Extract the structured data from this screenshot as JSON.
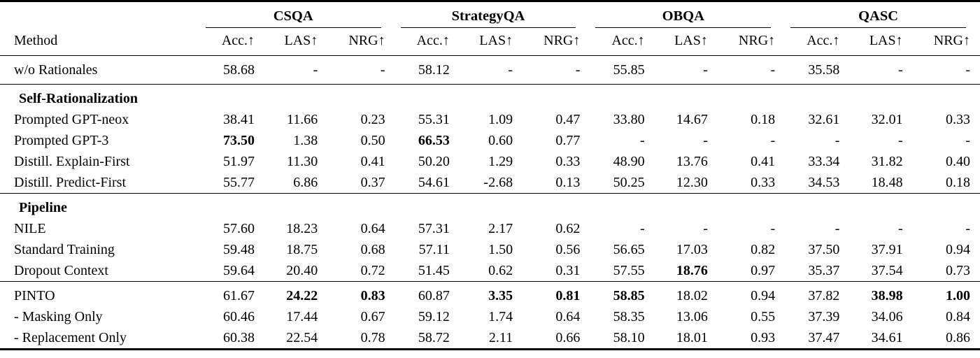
{
  "table": {
    "method_header": "Method",
    "groups": [
      {
        "label": "CSQA"
      },
      {
        "label": "StrategyQA"
      },
      {
        "label": "OBQA"
      },
      {
        "label": "QASC"
      }
    ],
    "metric_headers": [
      "Acc.↑",
      "LAS↑",
      "NRG↑"
    ],
    "sections": [
      {
        "header": null,
        "rows": [
          {
            "method": "w/o Rationales",
            "values": [
              "58.68",
              "-",
              "-",
              "58.12",
              "-",
              "-",
              "55.85",
              "-",
              "-",
              "35.58",
              "-",
              "-"
            ],
            "bold": []
          }
        ]
      },
      {
        "header": "Self-Rationalization",
        "rows": [
          {
            "method": "Prompted GPT-neox",
            "values": [
              "38.41",
              "11.66",
              "0.23",
              "55.31",
              "1.09",
              "0.47",
              "33.80",
              "14.67",
              "0.18",
              "32.61",
              "32.01",
              "0.33"
            ],
            "bold": []
          },
          {
            "method": "Prompted GPT-3",
            "values": [
              "73.50",
              "1.38",
              "0.50",
              "66.53",
              "0.60",
              "0.77",
              "-",
              "-",
              "-",
              "-",
              "-",
              "-"
            ],
            "bold": [
              0,
              3
            ]
          },
          {
            "method": "Distill. Explain-First",
            "values": [
              "51.97",
              "11.30",
              "0.41",
              "50.20",
              "1.29",
              "0.33",
              "48.90",
              "13.76",
              "0.41",
              "33.34",
              "31.82",
              "0.40"
            ],
            "bold": []
          },
          {
            "method": "Distill. Predict-First",
            "values": [
              "55.77",
              "6.86",
              "0.37",
              "54.61",
              "-2.68",
              "0.13",
              "50.25",
              "12.30",
              "0.33",
              "34.53",
              "18.48",
              "0.18"
            ],
            "bold": []
          }
        ]
      },
      {
        "header": "Pipeline",
        "rows": [
          {
            "method": "NILE",
            "values": [
              "57.60",
              "18.23",
              "0.64",
              "57.31",
              "2.17",
              "0.62",
              "-",
              "-",
              "-",
              "-",
              "-",
              "-"
            ],
            "bold": []
          },
          {
            "method": "Standard Training",
            "values": [
              "59.48",
              "18.75",
              "0.68",
              "57.11",
              "1.50",
              "0.56",
              "56.65",
              "17.03",
              "0.82",
              "37.50",
              "37.91",
              "0.94"
            ],
            "bold": []
          },
          {
            "method": "Dropout Context",
            "values": [
              "59.64",
              "20.40",
              "0.72",
              "51.45",
              "0.62",
              "0.31",
              "57.55",
              "18.76",
              "0.97",
              "35.37",
              "37.54",
              "0.73"
            ],
            "bold": [
              7
            ]
          }
        ]
      },
      {
        "header": null,
        "rows": [
          {
            "method": "PINTO",
            "values": [
              "61.67",
              "24.22",
              "0.83",
              "60.87",
              "3.35",
              "0.81",
              "58.85",
              "18.02",
              "0.94",
              "37.82",
              "38.98",
              "1.00"
            ],
            "bold": [
              1,
              2,
              4,
              5,
              6,
              10,
              11
            ]
          },
          {
            "method": "- Masking Only",
            "values": [
              "60.46",
              "17.44",
              "0.67",
              "59.12",
              "1.74",
              "0.64",
              "58.35",
              "13.06",
              "0.55",
              "37.39",
              "34.06",
              "0.84"
            ],
            "bold": []
          },
          {
            "method": "- Replacement Only",
            "values": [
              "60.38",
              "22.54",
              "0.78",
              "58.72",
              "2.11",
              "0.66",
              "58.10",
              "18.01",
              "0.93",
              "37.47",
              "34.61",
              "0.86"
            ],
            "bold": []
          }
        ]
      }
    ]
  }
}
